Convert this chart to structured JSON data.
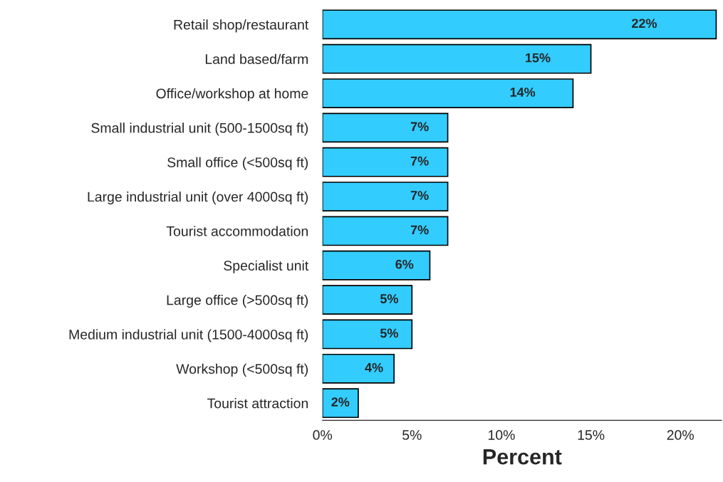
{
  "chart_data": {
    "type": "bar",
    "orientation": "horizontal",
    "xlabel": "Percent",
    "categories": [
      "Retail shop/restaurant",
      "Land based/farm",
      "Office/workshop at home",
      "Small industrial unit (500-1500sq ft)",
      "Small office (<500sq ft)",
      "Large industrial unit (over 4000sq ft)",
      "Tourist accommodation",
      "Specialist unit",
      "Large office (>500sq ft)",
      "Medium industrial unit (1500-4000sq ft)",
      "Workshop (<500sq ft)",
      "Tourist attraction"
    ],
    "values": [
      22,
      15,
      14,
      7,
      7,
      7,
      7,
      6,
      5,
      5,
      4,
      2
    ],
    "value_labels": [
      "22%",
      "15%",
      "14%",
      "7%",
      "7%",
      "7%",
      "7%",
      "6%",
      "5%",
      "5%",
      "4%",
      "2%"
    ],
    "color": "#33ccff",
    "xlim": [
      0,
      22.3
    ],
    "xticks": [
      {
        "value": 0,
        "label": "0%"
      },
      {
        "value": 5,
        "label": "5%"
      },
      {
        "value": 10,
        "label": "10%"
      },
      {
        "value": 15,
        "label": "15%"
      },
      {
        "value": 20,
        "label": "20%"
      }
    ],
    "grid": false,
    "legend": false
  }
}
